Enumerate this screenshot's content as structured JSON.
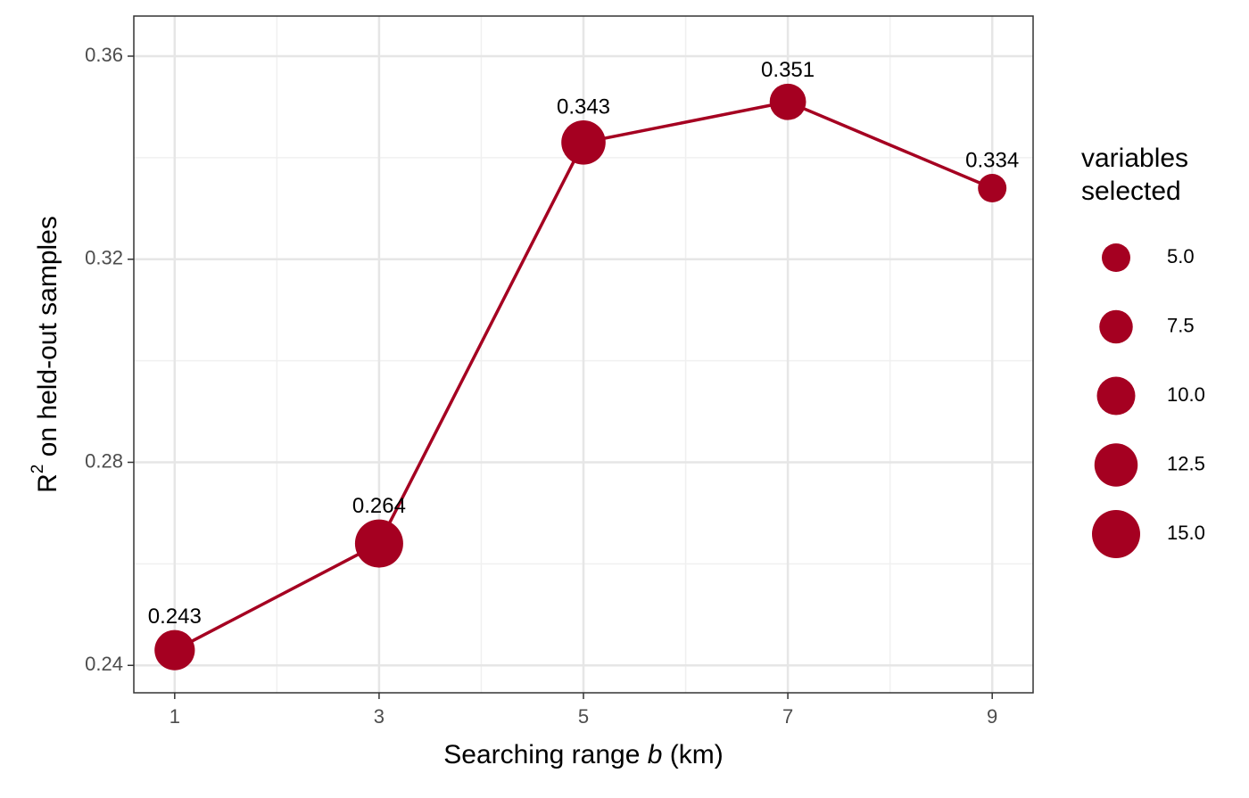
{
  "chart_data": {
    "type": "scatter-line",
    "x_label": [
      "Searching range ",
      "b",
      " (km)"
    ],
    "y_label": [
      "R",
      "2",
      " on held-out samples"
    ],
    "x": [
      1,
      3,
      5,
      7,
      9
    ],
    "series": [
      {
        "name": "R2",
        "color": "#a50021",
        "values": [
          0.243,
          0.264,
          0.343,
          0.351,
          0.334
        ],
        "sizes": [
          11,
          15,
          13,
          9,
          5
        ]
      }
    ],
    "xlim": [
      0.6,
      9.4
    ],
    "xticks": [
      1,
      3,
      5,
      7,
      9
    ],
    "ylim": [
      0.2346,
      0.3679
    ],
    "yticks": [
      0.24,
      0.28,
      0.32,
      0.36
    ],
    "grid": true,
    "size_legend": {
      "title": [
        "variables",
        "selected"
      ],
      "ticks": [
        {
          "value": 5,
          "label": "5.0"
        },
        7.5,
        {
          "value": 10,
          "label": "10.0"
        },
        12.5,
        {
          "value": 15,
          "label": "15.0"
        }
      ]
    },
    "legend": "right"
  }
}
